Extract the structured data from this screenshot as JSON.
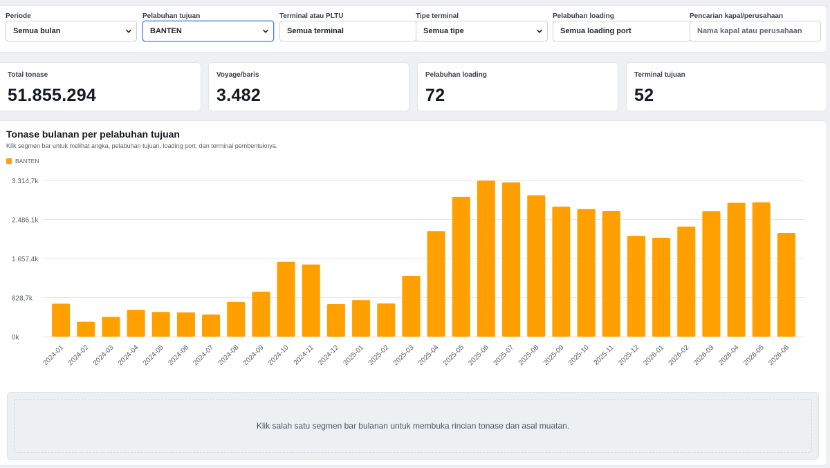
{
  "filters": {
    "periode": {
      "label": "Periode",
      "value": "Semua bulan"
    },
    "pelabuhan_tujuan": {
      "label": "Pelabuhan tujuan",
      "value": "BANTEN"
    },
    "terminal": {
      "label": "Terminal atau PLTU",
      "value": "Semua terminal"
    },
    "tipe_terminal": {
      "label": "Tipe terminal",
      "value": "Semua tipe"
    },
    "pelabuhan_loading": {
      "label": "Pelabuhan loading",
      "value": "Semua loading port"
    },
    "pencarian": {
      "label": "Pencarian kapal/perusahaan",
      "placeholder": "Nama kapal atau perusahaan"
    }
  },
  "stats": [
    {
      "label": "Total tonase",
      "value": "51.855.294"
    },
    {
      "label": "Voyage/baris",
      "value": "3.482"
    },
    {
      "label": "Pelabuhan loading",
      "value": "72"
    },
    {
      "label": "Terminal tujuan",
      "value": "52"
    }
  ],
  "chart": {
    "title": "Tonase bulanan per pelabuhan tujuan",
    "subtitle": "Klik segmen bar untuk melihat angka, pelabuhan tujuan, loading port, dan terminal pembentuknya.",
    "legend": "BANTEN",
    "detail_hint": "Klik salah satu segmen bar bulanan untuk membuka rincian tonase dan asal muatan."
  },
  "colors": {
    "bar": "#ffa000",
    "accent_focus": "#4a86e8",
    "grid": "#e3e6ea"
  },
  "chart_data": {
    "type": "bar",
    "title": "Tonase bulanan per pelabuhan tujuan",
    "categories": [
      "2024-01",
      "2024-02",
      "2024-03",
      "2024-04",
      "2024-05",
      "2024-06",
      "2024-07",
      "2024-08",
      "2024-09",
      "2024-10",
      "2024-11",
      "2024-12",
      "2025-01",
      "2025-02",
      "2025-03",
      "2025-04",
      "2025-05",
      "2025-06",
      "2025-07",
      "2025-08",
      "2025-09",
      "2025-10",
      "2025-11",
      "2025-12",
      "2026-01",
      "2026-02",
      "2026-03",
      "2026-04",
      "2026-05",
      "2026-06"
    ],
    "series": [
      {
        "name": "BANTEN",
        "values": [
          700,
          315,
          420,
          570,
          525,
          515,
          470,
          735,
          955,
          1590,
          1530,
          690,
          775,
          705,
          1290,
          2240,
          2965,
          3310,
          3275,
          3000,
          2760,
          2710,
          2670,
          2140,
          2100,
          2335,
          2665,
          2840,
          2850,
          2200
        ]
      }
    ],
    "yticks": [
      "0k",
      "828,7k",
      "1.657,4k",
      "2.486,1k",
      "3.314,7k"
    ],
    "ylim": [
      0,
      3314.7
    ],
    "legend_position": "top-left",
    "grid": true
  }
}
